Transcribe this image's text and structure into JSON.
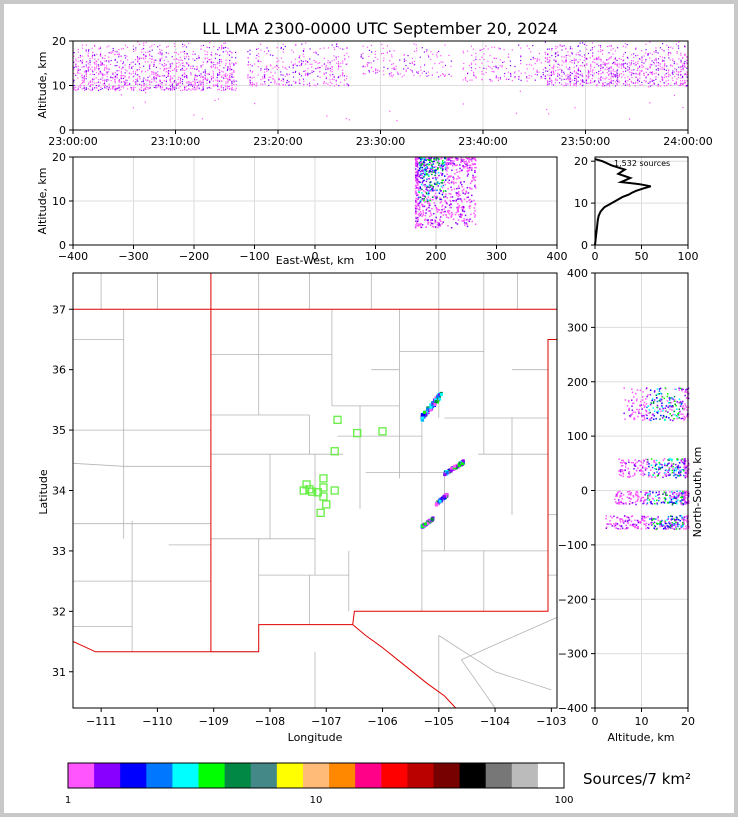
{
  "title": "LL LMA 2300-0000 UTC September 20, 2024",
  "source_count_label": "1,532 sources",
  "colorbar_label": "Sources/7 km²",
  "colors": {
    "state_border": "#e00000",
    "county_line": "#b4b4b4",
    "station_marker": "#66ee44",
    "grid": "#dddddd"
  },
  "chart_data": [
    {
      "id": "time_height",
      "type": "scatter",
      "xlabel": "",
      "ylabel": "Altitude, km",
      "x_ticks": [
        "23:00:00",
        "23:10:00",
        "23:20:00",
        "23:30:00",
        "23:40:00",
        "23:50:00",
        "24:00:00"
      ],
      "x_range_min": [
        0,
        60
      ],
      "ylim": [
        0,
        20
      ],
      "y_ticks": [
        0,
        10,
        20
      ],
      "grid": true,
      "clusters": [
        {
          "t": [
            0,
            16
          ],
          "alt": [
            9,
            20
          ],
          "density": 1.0
        },
        {
          "t": [
            17,
            27
          ],
          "alt": [
            10,
            20
          ],
          "density": 0.5
        },
        {
          "t": [
            28,
            37
          ],
          "alt": [
            12,
            20
          ],
          "density": 0.25
        },
        {
          "t": [
            38,
            46
          ],
          "alt": [
            11,
            20
          ],
          "density": 0.3
        },
        {
          "t": [
            46,
            60
          ],
          "alt": [
            10,
            20
          ],
          "density": 0.9
        }
      ]
    },
    {
      "id": "east_west_altitude",
      "type": "scatter",
      "xlabel": "East-West, km",
      "ylabel": "Altitude, km",
      "xlim": [
        -400,
        400
      ],
      "x_ticks": [
        -400,
        -300,
        -200,
        -100,
        0,
        100,
        200,
        300,
        400
      ],
      "ylim": [
        0,
        20
      ],
      "y_ticks": [
        0,
        10,
        20
      ],
      "grid": true,
      "clusters": [
        {
          "ew": [
            165,
            265
          ],
          "alt": [
            4,
            20
          ]
        }
      ]
    },
    {
      "id": "altitude_histogram",
      "type": "line",
      "xlim": [
        0,
        100
      ],
      "x_ticks": [
        0,
        50,
        100
      ],
      "ylim": [
        0,
        21
      ],
      "y_ticks": [
        0,
        10,
        20
      ],
      "grid": true,
      "x": [
        0,
        1,
        2,
        3,
        4,
        6,
        10,
        18,
        26,
        30,
        36,
        40,
        45,
        52,
        60,
        48,
        28,
        38,
        25,
        32,
        18,
        8,
        0
      ],
      "y": [
        0,
        2,
        4,
        6,
        7,
        8,
        9,
        10,
        11,
        11.5,
        12,
        12.5,
        13,
        13.5,
        14,
        14.5,
        15,
        16,
        17,
        18,
        19,
        20,
        20.5
      ]
    },
    {
      "id": "plan_view",
      "type": "scatter",
      "xlabel": "Longitude",
      "ylabel": "Latitude",
      "xlim": [
        -111.5,
        -102.9
      ],
      "x_ticks": [
        -111,
        -110,
        -109,
        -108,
        -107,
        -106,
        -105,
        -104,
        -103
      ],
      "ylim": [
        30.4,
        37.6
      ],
      "y_ticks": [
        31,
        32,
        33,
        34,
        35,
        36,
        37
      ],
      "lightning_clusters": [
        {
          "lon": [
            -105.3,
            -104.95
          ],
          "lat": [
            35.15,
            35.65
          ]
        },
        {
          "lon": [
            -104.9,
            -104.55
          ],
          "lat": [
            34.25,
            34.5
          ]
        },
        {
          "lon": [
            -105.05,
            -104.85
          ],
          "lat": [
            33.75,
            33.95
          ]
        },
        {
          "lon": [
            -105.3,
            -105.1
          ],
          "lat": [
            33.38,
            33.55
          ]
        }
      ],
      "stations": [
        {
          "lon": -106.8,
          "lat": 35.17
        },
        {
          "lon": -106.45,
          "lat": 34.95
        },
        {
          "lon": -106.0,
          "lat": 34.98
        },
        {
          "lon": -106.85,
          "lat": 34.65
        },
        {
          "lon": -107.05,
          "lat": 34.2
        },
        {
          "lon": -107.35,
          "lat": 34.1
        },
        {
          "lon": -107.05,
          "lat": 34.05
        },
        {
          "lon": -107.4,
          "lat": 34.0
        },
        {
          "lon": -107.25,
          "lat": 33.98
        },
        {
          "lon": -107.3,
          "lat": 34.02
        },
        {
          "lon": -107.15,
          "lat": 33.97
        },
        {
          "lon": -106.85,
          "lat": 34.0
        },
        {
          "lon": -107.05,
          "lat": 33.9
        },
        {
          "lon": -107.0,
          "lat": 33.77
        },
        {
          "lon": -107.1,
          "lat": 33.63
        }
      ]
    },
    {
      "id": "altitude_north_south",
      "type": "scatter",
      "xlabel": "Altitude, km",
      "ylabel": "North-South, km",
      "xlim": [
        0,
        20
      ],
      "x_ticks": [
        0,
        10,
        20
      ],
      "ylim": [
        -400,
        400
      ],
      "y_ticks": [
        -400,
        -300,
        -200,
        -100,
        0,
        100,
        200,
        300,
        400
      ],
      "grid": true,
      "clusters": [
        {
          "alt": [
            6,
            20
          ],
          "ns": [
            130,
            190
          ]
        },
        {
          "alt": [
            5,
            20
          ],
          "ns": [
            25,
            60
          ]
        },
        {
          "alt": [
            4,
            20
          ],
          "ns": [
            -25,
            0
          ]
        },
        {
          "alt": [
            2,
            20
          ],
          "ns": [
            -70,
            -45
          ]
        }
      ]
    },
    {
      "id": "colorbar",
      "type": "heatmap",
      "scale": "log",
      "range": [
        1,
        100
      ],
      "tick_labels": [
        "1",
        "10",
        "100"
      ],
      "colors": [
        "#ff55ff",
        "#8800ff",
        "#0000ff",
        "#0077ff",
        "#00ffff",
        "#00ff00",
        "#008844",
        "#448888",
        "#ffff00",
        "#ffbb77",
        "#ff8800",
        "#ff0088",
        "#ff0000",
        "#bb0000",
        "#770000",
        "#000000",
        "#777777",
        "#bbbbbb",
        "#ffffff"
      ]
    }
  ]
}
